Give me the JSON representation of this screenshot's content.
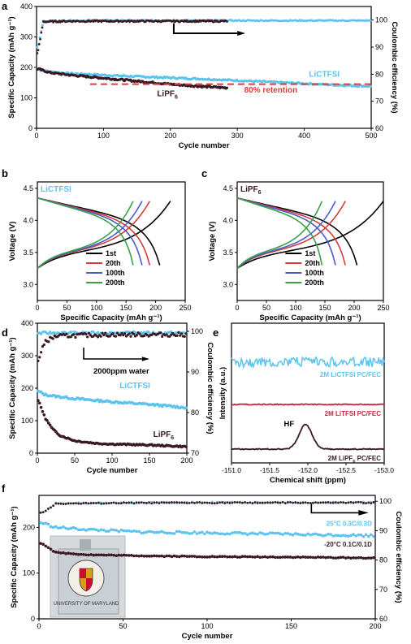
{
  "chart_data": [
    {
      "panel": "a",
      "type": "scatter",
      "xlabel": "Cycle number",
      "ylabel": "Specific Capacity (mAh g⁻¹)",
      "y2label": "Coulombic efficiency (%)",
      "xlim": [
        0,
        500
      ],
      "ylim": [
        0,
        400
      ],
      "y2lim": [
        60,
        105
      ],
      "xticks": [
        0,
        100,
        200,
        300,
        400,
        500
      ],
      "yticks": [
        0,
        100,
        200,
        300,
        400
      ],
      "y2ticks": [
        60,
        70,
        80,
        90,
        100
      ],
      "annotations": {
        "lictfsi": "LiCTFSI",
        "lipf6": "LiPF",
        "lipf6_sub": "6",
        "retention": "80% retention"
      },
      "retention_line": 145,
      "series": [
        {
          "name": "LiCTFSI",
          "color": "#5bc3ec",
          "axis": "left",
          "x": [
            2,
            20,
            50,
            100,
            150,
            200,
            250,
            300,
            350,
            400,
            450,
            500
          ],
          "y": [
            195,
            185,
            180,
            175,
            170,
            166,
            162,
            157,
            152,
            147,
            142,
            138
          ]
        },
        {
          "name": "LiPF6",
          "color": "#3a1a22",
          "axis": "left",
          "x": [
            2,
            20,
            50,
            100,
            150,
            200,
            250,
            285
          ],
          "y": [
            195,
            183,
            175,
            165,
            155,
            145,
            137,
            133
          ]
        },
        {
          "name": "LiCTFSI CE",
          "color": "#5bc3ec",
          "axis": "right",
          "x": [
            2,
            10,
            50,
            100,
            200,
            300,
            400,
            500
          ],
          "y": [
            90,
            99.5,
            99.8,
            99.8,
            99.8,
            99.8,
            99.8,
            99.8
          ]
        },
        {
          "name": "LiPF6 CE",
          "color": "#3a1a22",
          "axis": "right",
          "x": [
            2,
            10,
            50,
            100,
            200,
            285
          ],
          "y": [
            88,
            99.4,
            99.6,
            99.6,
            99.6,
            99.6
          ]
        }
      ]
    },
    {
      "panel": "b",
      "type": "line",
      "xlabel": "Specific Capacity (mAh g⁻¹)",
      "ylabel": "Voltage (V)",
      "xlim": [
        0,
        250
      ],
      "ylim": [
        2.75,
        4.6
      ],
      "xticks": [
        0,
        50,
        100,
        150,
        200,
        250
      ],
      "yticks": [
        3.0,
        3.5,
        4.0,
        4.5
      ],
      "label": "LiCTFSI",
      "series": [
        {
          "name": "1st",
          "color": "#000000",
          "capacity": 207,
          "charge_capacity": 225
        },
        {
          "name": "20th",
          "color": "#d63a3a",
          "capacity": 190,
          "charge_capacity": 190
        },
        {
          "name": "100th",
          "color": "#4a5cc8",
          "capacity": 177,
          "charge_capacity": 177
        },
        {
          "name": "200th",
          "color": "#3aa04a",
          "capacity": 162,
          "charge_capacity": 162
        }
      ]
    },
    {
      "panel": "c",
      "type": "line",
      "xlabel": "Specific Capacity (mAh g⁻¹)",
      "ylabel": "Voltage (V)",
      "xlim": [
        0,
        250
      ],
      "ylim": [
        2.75,
        4.6
      ],
      "xticks": [
        0,
        50,
        100,
        150,
        200,
        250
      ],
      "yticks": [
        3.0,
        3.5,
        4.0,
        4.5
      ],
      "label": "LiPF",
      "label_sub": "6",
      "series": [
        {
          "name": "1st",
          "color": "#000000",
          "capacity": 205,
          "charge_capacity": 250
        },
        {
          "name": "20th",
          "color": "#d63a3a",
          "capacity": 185,
          "charge_capacity": 185
        },
        {
          "name": "100th",
          "color": "#4a5cc8",
          "capacity": 168,
          "charge_capacity": 168
        },
        {
          "name": "200th",
          "color": "#3aa04a",
          "capacity": 145,
          "charge_capacity": 145
        }
      ]
    },
    {
      "panel": "d",
      "type": "scatter",
      "xlabel": "Cycle number",
      "ylabel": "Specific Capacity (mAh g⁻¹)",
      "y2label": "Coulombic efficiency (%)",
      "xlim": [
        0,
        200
      ],
      "ylim": [
        0,
        400
      ],
      "y2lim": [
        70,
        102
      ],
      "xticks": [
        0,
        50,
        100,
        150,
        200
      ],
      "yticks": [
        0,
        100,
        200,
        300,
        400
      ],
      "y2ticks": [
        70,
        80,
        90,
        100
      ],
      "annotations": {
        "water": "2000ppm water",
        "lictfsi": "LiCTFSI",
        "lipf6": "LiPF",
        "lipf6_sub": "6"
      },
      "series": [
        {
          "name": "LiCTFSI",
          "color": "#5bc3ec",
          "axis": "left",
          "x": [
            2,
            10,
            25,
            50,
            100,
            150,
            200
          ],
          "y": [
            190,
            180,
            175,
            168,
            158,
            150,
            140
          ]
        },
        {
          "name": "LiPF6",
          "color": "#3a1a22",
          "axis": "left",
          "x": [
            2,
            10,
            20,
            30,
            50,
            80,
            100,
            150,
            200
          ],
          "y": [
            160,
            110,
            75,
            55,
            38,
            30,
            28,
            25,
            20
          ]
        },
        {
          "name": "LiCTFSI CE",
          "color": "#5bc3ec",
          "axis": "right",
          "x": [
            2,
            10,
            50,
            100,
            150,
            200
          ],
          "y": [
            99.5,
            99.6,
            99.6,
            99.6,
            99.6,
            99.6
          ]
        },
        {
          "name": "LiPF6 CE",
          "color": "#3a1a22",
          "axis": "right",
          "x": [
            2,
            10,
            25,
            50,
            100,
            150,
            200
          ],
          "y": [
            93,
            97.5,
            98.8,
            99.0,
            99.2,
            99.2,
            99.2
          ]
        }
      ]
    },
    {
      "panel": "e",
      "type": "line",
      "xlabel": "Chemical shift (ppm)",
      "ylabel": "Intensity (a.u.)",
      "xlim": [
        -151.0,
        -153.0
      ],
      "xticks": [
        -151.0,
        -151.5,
        -152.0,
        -152.5,
        -153.0
      ],
      "xticklabels": [
        "-151.0",
        "-151.5",
        "-152.0",
        "-152.5",
        "-153.0"
      ],
      "peak_label": "HF",
      "peak_position": -151.97,
      "series": [
        {
          "name": "2M LiCTFSI PC/FEC",
          "color": "#5bc3ec"
        },
        {
          "name": "2M LiTFSI PC/FEC",
          "color": "#c8283a"
        },
        {
          "name": "2M LiPF",
          "name_sub": "6",
          "name_tail": " PC/FEC",
          "color": "#3a1a22"
        }
      ]
    },
    {
      "panel": "f",
      "type": "scatter",
      "xlabel": "Cycle number",
      "ylabel": "Specific Capacity (mAh g⁻¹)",
      "y2label": "Coulombic efficiency (%)",
      "xlim": [
        0,
        200
      ],
      "ylim": [
        0,
        270
      ],
      "y2lim": [
        60,
        102
      ],
      "xticks": [
        0,
        50,
        100,
        150,
        200
      ],
      "yticks": [
        0,
        100,
        200
      ],
      "y2ticks": [
        60,
        70,
        80,
        90,
        100
      ],
      "series": [
        {
          "name": "25°C 0.3C/0.3D",
          "color": "#5bc3ec",
          "axis": "left",
          "x": [
            2,
            10,
            30,
            60,
            100,
            150,
            200
          ],
          "y": [
            210,
            200,
            195,
            190,
            188,
            185,
            182
          ]
        },
        {
          "name": "-20°C 0.1C/0.1D",
          "color": "#3a1a22",
          "axis": "left",
          "x": [
            2,
            10,
            30,
            60,
            100,
            150,
            200
          ],
          "y": [
            165,
            145,
            140,
            138,
            136,
            135,
            133
          ]
        },
        {
          "name": "25°C CE",
          "color": "#5bc3ec",
          "axis": "right",
          "x": [
            2,
            10,
            50,
            100,
            150,
            200
          ],
          "y": [
            96,
            99.3,
            99.5,
            99.6,
            99.6,
            99.6
          ]
        },
        {
          "name": "-20°C CE",
          "color": "#3a1a22",
          "axis": "right",
          "x": [
            2,
            10,
            50,
            100,
            150,
            200
          ],
          "y": [
            96,
            99.2,
            99.4,
            99.5,
            99.5,
            99.5
          ]
        }
      ],
      "inset_text": "UNIVERSITY OF MARYLAND"
    }
  ]
}
